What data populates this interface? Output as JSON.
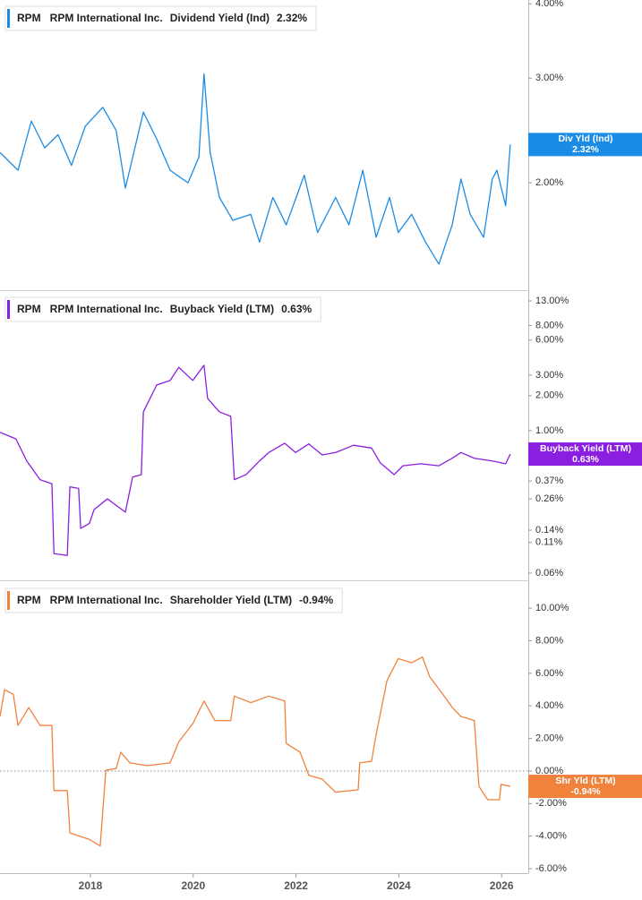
{
  "chart_data": [
    {
      "type": "line",
      "log": true,
      "ticker": "RPM",
      "company": "RPM International Inc.",
      "xlim": [
        2016.24,
        2026.52
      ],
      "ylim": [
        1.32,
        4.06
      ],
      "yticks": [
        {
          "value": 4,
          "label": "4.00%"
        },
        {
          "value": 3,
          "label": "3.00%"
        },
        {
          "value": 2,
          "label": "2.00%"
        }
      ],
      "x": [
        2016.24,
        2016.59,
        2016.85,
        2017.11,
        2017.37,
        2017.63,
        2017.9,
        2018.24,
        2018.5,
        2018.68,
        2019.03,
        2019.29,
        2019.55,
        2019.9,
        2020.11,
        2020.21,
        2020.33,
        2020.51,
        2020.77,
        2021.12,
        2021.29,
        2021.55,
        2021.81,
        2022.16,
        2022.42,
        2022.77,
        2023.03,
        2023.3,
        2023.56,
        2023.82,
        2023.99,
        2024.25,
        2024.52,
        2024.78,
        2025.04,
        2025.21,
        2025.39,
        2025.65,
        2025.82,
        2025.91,
        2026.08,
        2026.17
      ],
      "series": [
        {
          "name": "Dividend Yield (Ind)",
          "short_name": "Div Yld (Ind)",
          "color": "#1a8ce6",
          "values": [
            2.25,
            2.1,
            2.54,
            2.29,
            2.41,
            2.14,
            2.49,
            2.68,
            2.45,
            1.96,
            2.63,
            2.37,
            2.1,
            2.0,
            2.21,
            3.05,
            2.25,
            1.89,
            1.73,
            1.77,
            1.59,
            1.89,
            1.7,
            2.06,
            1.65,
            1.89,
            1.7,
            2.1,
            1.62,
            1.89,
            1.65,
            1.77,
            1.59,
            1.46,
            1.7,
            2.03,
            1.77,
            1.62,
            2.03,
            2.1,
            1.83,
            2.32
          ],
          "last_value": 2.32,
          "last_value_label": "2.32%"
        }
      ]
    },
    {
      "type": "line",
      "log": true,
      "ticker": "RPM",
      "company": "RPM International Inc.",
      "xlim": [
        2016.24,
        2026.52
      ],
      "ylim": [
        0.052,
        15.8
      ],
      "yticks": [
        {
          "value": 13,
          "label": "13.00%"
        },
        {
          "value": 8,
          "label": "8.00%"
        },
        {
          "value": 6,
          "label": "6.00%"
        },
        {
          "value": 3,
          "label": "3.00%"
        },
        {
          "value": 2,
          "label": "2.00%"
        },
        {
          "value": 1,
          "label": "1.00%"
        },
        {
          "value": 0.37,
          "label": "0.37%"
        },
        {
          "value": 0.26,
          "label": "0.26%"
        },
        {
          "value": 0.14,
          "label": "0.14%"
        },
        {
          "value": 0.11,
          "label": "0.11%"
        },
        {
          "value": 0.06,
          "label": "0.06%"
        }
      ],
      "x": [
        2016.24,
        2016.55,
        2016.76,
        2017.02,
        2017.25,
        2017.29,
        2017.55,
        2017.6,
        2017.77,
        2017.81,
        2017.98,
        2018.07,
        2018.33,
        2018.68,
        2018.82,
        2018.99,
        2019.03,
        2019.29,
        2019.55,
        2019.72,
        2019.99,
        2020.21,
        2020.28,
        2020.51,
        2020.73,
        2020.8,
        2021.03,
        2021.29,
        2021.47,
        2021.78,
        2021.99,
        2022.25,
        2022.51,
        2022.77,
        2023.12,
        2023.47,
        2023.64,
        2023.91,
        2024.08,
        2024.43,
        2024.78,
        2025.04,
        2025.21,
        2025.47,
        2025.82,
        2026.08,
        2026.17
      ],
      "series": [
        {
          "name": "Buyback Yield (LTM)",
          "short_name": "Buyback Yield (LTM)",
          "color": "#8a1fe0",
          "values": [
            0.97,
            0.85,
            0.55,
            0.38,
            0.35,
            0.088,
            0.085,
            0.33,
            0.32,
            0.145,
            0.16,
            0.21,
            0.26,
            0.2,
            0.4,
            0.42,
            1.45,
            2.47,
            2.7,
            3.5,
            2.7,
            3.64,
            1.89,
            1.45,
            1.33,
            0.38,
            0.42,
            0.55,
            0.65,
            0.78,
            0.65,
            0.77,
            0.62,
            0.65,
            0.75,
            0.71,
            0.53,
            0.42,
            0.5,
            0.52,
            0.5,
            0.58,
            0.65,
            0.58,
            0.55,
            0.52,
            0.63
          ],
          "last_value": 0.63,
          "last_value_label": "0.63%"
        }
      ]
    },
    {
      "type": "line",
      "log": false,
      "ticker": "RPM",
      "company": "RPM International Inc.",
      "xlim": [
        2016.24,
        2026.52
      ],
      "ylim": [
        -6.27,
        11.6
      ],
      "yticks": [
        {
          "value": 10,
          "label": "10.00%"
        },
        {
          "value": 8,
          "label": "8.00%"
        },
        {
          "value": 6,
          "label": "6.00%"
        },
        {
          "value": 4,
          "label": "4.00%"
        },
        {
          "value": 2,
          "label": "2.00%"
        },
        {
          "value": 0,
          "label": "0.00%"
        },
        {
          "value": -2,
          "label": "-2.00%"
        },
        {
          "value": -4,
          "label": "-4.00%"
        },
        {
          "value": -6,
          "label": "-6.00%"
        }
      ],
      "xticks": [
        2018,
        2020,
        2022,
        2024,
        2026
      ],
      "x": [
        2016.24,
        2016.33,
        2016.5,
        2016.59,
        2016.8,
        2017.02,
        2017.25,
        2017.29,
        2017.55,
        2017.6,
        2017.98,
        2018.19,
        2018.3,
        2018.5,
        2018.59,
        2018.77,
        2019.11,
        2019.55,
        2019.72,
        2019.99,
        2020.21,
        2020.42,
        2020.73,
        2020.8,
        2021.12,
        2021.47,
        2021.78,
        2021.81,
        2022.08,
        2022.25,
        2022.51,
        2022.77,
        2023.21,
        2023.24,
        2023.47,
        2023.56,
        2023.77,
        2023.99,
        2024.25,
        2024.46,
        2024.6,
        2024.86,
        2025.04,
        2025.21,
        2025.47,
        2025.56,
        2025.73,
        2025.96,
        2025.99,
        2026.17
      ],
      "series": [
        {
          "name": "Shareholder Yield (LTM)",
          "short_name": "Shr Yld (LTM)",
          "color": "#f0823c",
          "values": [
            3.35,
            5.0,
            4.7,
            2.8,
            3.9,
            2.8,
            2.8,
            -1.2,
            -1.2,
            -3.8,
            -4.2,
            -4.6,
            0.05,
            0.15,
            1.15,
            0.5,
            0.33,
            0.5,
            1.8,
            2.9,
            4.3,
            3.1,
            3.1,
            4.6,
            4.2,
            4.6,
            4.3,
            1.7,
            1.15,
            -0.27,
            -0.5,
            -1.3,
            -1.15,
            0.5,
            0.6,
            2.25,
            5.55,
            6.9,
            6.65,
            7.0,
            5.8,
            4.7,
            3.9,
            3.35,
            3.1,
            -0.94,
            -1.76,
            -1.76,
            -0.82,
            -0.94
          ],
          "last_value": -0.94,
          "last_value_label": "-0.94%"
        }
      ]
    }
  ]
}
